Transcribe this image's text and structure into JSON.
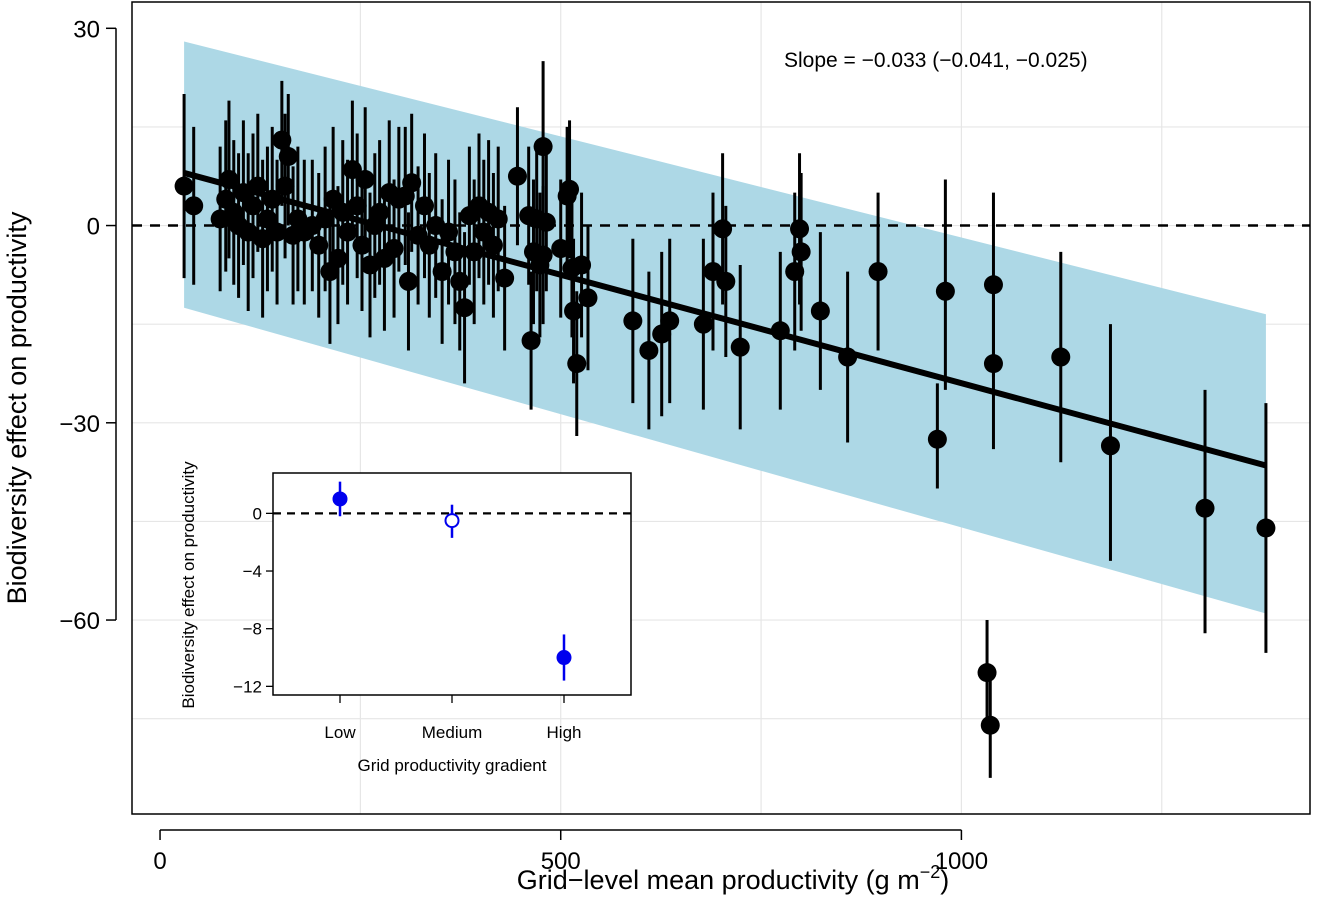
{
  "chart_data": {
    "type": "scatter",
    "xlabel": "Grid−level mean productivity (g m",
    "xlabel_sup": "−2",
    "xlabel_end": ")",
    "ylabel": "Biodiversity effect on productivity",
    "xlim": [
      -35,
      1435
    ],
    "ylim": [
      -89.5,
      34
    ],
    "xticks": [
      {
        "value": 0,
        "label": "0"
      },
      {
        "value": 500,
        "label": "500"
      },
      {
        "value": 1000,
        "label": "1000"
      }
    ],
    "yticks": [
      {
        "value": 30,
        "label": "30"
      },
      {
        "value": 0,
        "label": "0"
      },
      {
        "value": -30,
        "label": "−30"
      },
      {
        "value": -60,
        "label": "−60"
      }
    ],
    "xgrid": [
      250,
      500,
      750,
      1000,
      1250
    ],
    "ygrid": [
      15,
      0,
      -15,
      -30,
      -45,
      -60,
      -75
    ],
    "reference_line_y": 0,
    "annotation": "Slope = −0.033 (−0.041, −0.025)",
    "regression": {
      "x": [
        30,
        1380
      ],
      "y": [
        8,
        -36.5
      ]
    },
    "ribbon": {
      "x": [
        30,
        1380
      ],
      "upper": [
        28,
        -13.5
      ],
      "lower": [
        -12.5,
        -59
      ],
      "color": "#ADD8E6"
    },
    "point_color": "#000000",
    "points": [
      {
        "x": 30,
        "y": 6,
        "lo": -8,
        "hi": 20
      },
      {
        "x": 42,
        "y": 3,
        "lo": -9,
        "hi": 15
      },
      {
        "x": 75,
        "y": 1,
        "lo": -10,
        "hi": 12
      },
      {
        "x": 82,
        "y": 4,
        "lo": -7,
        "hi": 16
      },
      {
        "x": 86,
        "y": 7,
        "lo": -5,
        "hi": 19
      },
      {
        "x": 92,
        "y": 2,
        "lo": -9,
        "hi": 13
      },
      {
        "x": 98,
        "y": 0,
        "lo": -11,
        "hi": 11
      },
      {
        "x": 104,
        "y": 5,
        "lo": -6,
        "hi": 16
      },
      {
        "x": 110,
        "y": -1,
        "lo": -13,
        "hi": 11
      },
      {
        "x": 116,
        "y": 3,
        "lo": -8,
        "hi": 14
      },
      {
        "x": 122,
        "y": 6,
        "lo": -4,
        "hi": 17
      },
      {
        "x": 128,
        "y": -2,
        "lo": -14,
        "hi": 10
      },
      {
        "x": 134,
        "y": 1,
        "lo": -10,
        "hi": 12
      },
      {
        "x": 140,
        "y": 4,
        "lo": -7,
        "hi": 15
      },
      {
        "x": 146,
        "y": -1,
        "lo": -12,
        "hi": 10
      },
      {
        "x": 152,
        "y": 13,
        "lo": 3,
        "hi": 22
      },
      {
        "x": 156,
        "y": 6,
        "lo": -5,
        "hi": 17
      },
      {
        "x": 160,
        "y": 10.5,
        "lo": 0,
        "hi": 20
      },
      {
        "x": 166,
        "y": -1.5,
        "lo": -12,
        "hi": 9
      },
      {
        "x": 172,
        "y": 1,
        "lo": -10,
        "hi": 12
      },
      {
        "x": 180,
        "y": -1,
        "lo": -12,
        "hi": 10
      },
      {
        "x": 190,
        "y": 0,
        "lo": -10,
        "hi": 10
      },
      {
        "x": 198,
        "y": -3,
        "lo": -14,
        "hi": 8
      },
      {
        "x": 206,
        "y": 1,
        "lo": -10,
        "hi": 12
      },
      {
        "x": 212,
        "y": -7,
        "lo": -18,
        "hi": 4
      },
      {
        "x": 216,
        "y": 4,
        "lo": -6,
        "hi": 15
      },
      {
        "x": 222,
        "y": -5,
        "lo": -15,
        "hi": 6
      },
      {
        "x": 228,
        "y": 2,
        "lo": -9,
        "hi": 13
      },
      {
        "x": 234,
        "y": -1,
        "lo": -12,
        "hi": 10
      },
      {
        "x": 240,
        "y": 8.5,
        "lo": -2,
        "hi": 19
      },
      {
        "x": 246,
        "y": 3,
        "lo": -8,
        "hi": 14
      },
      {
        "x": 252,
        "y": -3,
        "lo": -13,
        "hi": 7
      },
      {
        "x": 256,
        "y": 7,
        "lo": -4,
        "hi": 18
      },
      {
        "x": 262,
        "y": -6,
        "lo": -17,
        "hi": 5
      },
      {
        "x": 268,
        "y": 0,
        "lo": -11,
        "hi": 11
      },
      {
        "x": 274,
        "y": 2,
        "lo": -9,
        "hi": 13
      },
      {
        "x": 280,
        "y": -5,
        "lo": -16,
        "hi": 6
      },
      {
        "x": 286,
        "y": 5,
        "lo": -6,
        "hi": 16
      },
      {
        "x": 292,
        "y": -3.5,
        "lo": -14,
        "hi": 7
      },
      {
        "x": 298,
        "y": 4,
        "lo": -7,
        "hi": 15
      },
      {
        "x": 306,
        "y": 4.5,
        "lo": -6,
        "hi": 15
      },
      {
        "x": 314,
        "y": 6.5,
        "lo": -4,
        "hi": 17
      },
      {
        "x": 310,
        "y": -8.5,
        "lo": -19,
        "hi": 2
      },
      {
        "x": 322,
        "y": -1.5,
        "lo": -12,
        "hi": 9
      },
      {
        "x": 330,
        "y": 3,
        "lo": -8,
        "hi": 14
      },
      {
        "x": 336,
        "y": -3,
        "lo": -14,
        "hi": 8
      },
      {
        "x": 344,
        "y": 0,
        "lo": -11,
        "hi": 11
      },
      {
        "x": 352,
        "y": -7,
        "lo": -18,
        "hi": 4
      },
      {
        "x": 360,
        "y": -1,
        "lo": -12,
        "hi": 10
      },
      {
        "x": 368,
        "y": -4,
        "lo": -15,
        "hi": 7
      },
      {
        "x": 374,
        "y": -8.5,
        "lo": -19,
        "hi": 2
      },
      {
        "x": 380,
        "y": -12.5,
        "lo": -24,
        "hi": -1
      },
      {
        "x": 386,
        "y": 1.5,
        "lo": -9,
        "hi": 12
      },
      {
        "x": 392,
        "y": -4,
        "lo": -15,
        "hi": 7
      },
      {
        "x": 398,
        "y": 3,
        "lo": -8,
        "hi": 14
      },
      {
        "x": 404,
        "y": -1,
        "lo": -12,
        "hi": 10
      },
      {
        "x": 410,
        "y": 2,
        "lo": -9,
        "hi": 13
      },
      {
        "x": 416,
        "y": -3,
        "lo": -14,
        "hi": 8
      },
      {
        "x": 422,
        "y": 1,
        "lo": -10,
        "hi": 12
      },
      {
        "x": 430,
        "y": -8,
        "lo": -19,
        "hi": 3
      },
      {
        "x": 446,
        "y": 7.5,
        "lo": -3,
        "hi": 18
      },
      {
        "x": 460,
        "y": 1.5,
        "lo": -9,
        "hi": 12
      },
      {
        "x": 463,
        "y": -17.5,
        "lo": -28,
        "hi": -7
      },
      {
        "x": 466,
        "y": -4,
        "lo": -15,
        "hi": 7
      },
      {
        "x": 470,
        "y": 1,
        "lo": -10,
        "hi": 12
      },
      {
        "x": 474,
        "y": -6,
        "lo": -17,
        "hi": 5
      },
      {
        "x": 478,
        "y": 12,
        "lo": 1,
        "hi": 25
      },
      {
        "x": 482,
        "y": 0.5,
        "lo": -10,
        "hi": 11
      },
      {
        "x": 478,
        "y": -4.5,
        "lo": -15,
        "hi": 6
      },
      {
        "x": 500,
        "y": -3.5,
        "lo": -14,
        "hi": 7
      },
      {
        "x": 508,
        "y": 4.5,
        "lo": -6,
        "hi": 15
      },
      {
        "x": 511,
        "y": 5.5,
        "lo": -5,
        "hi": 16
      },
      {
        "x": 514,
        "y": -6.5,
        "lo": -17,
        "hi": 4
      },
      {
        "x": 516,
        "y": -13,
        "lo": -24,
        "hi": -2
      },
      {
        "x": 520,
        "y": -21,
        "lo": -32,
        "hi": -10
      },
      {
        "x": 526,
        "y": -6,
        "lo": -17,
        "hi": 5
      },
      {
        "x": 534,
        "y": -11,
        "lo": -22,
        "hi": 0
      },
      {
        "x": 590,
        "y": -14.5,
        "lo": -27,
        "hi": -2
      },
      {
        "x": 610,
        "y": -19,
        "lo": -31,
        "hi": -7
      },
      {
        "x": 626,
        "y": -16.5,
        "lo": -29,
        "hi": -4
      },
      {
        "x": 636,
        "y": -14.5,
        "lo": -27,
        "hi": -2
      },
      {
        "x": 678,
        "y": -15,
        "lo": -28,
        "hi": -2
      },
      {
        "x": 690,
        "y": -7,
        "lo": -19,
        "hi": 5
      },
      {
        "x": 702,
        "y": -0.5,
        "lo": -12,
        "hi": 11
      },
      {
        "x": 706,
        "y": -8.5,
        "lo": -20,
        "hi": 3
      },
      {
        "x": 724,
        "y": -18.5,
        "lo": -31,
        "hi": -6
      },
      {
        "x": 774,
        "y": -16,
        "lo": -28,
        "hi": -4
      },
      {
        "x": 792,
        "y": -7,
        "lo": -19,
        "hi": 5
      },
      {
        "x": 798,
        "y": -0.5,
        "lo": -12,
        "hi": 11
      },
      {
        "x": 800,
        "y": -4,
        "lo": -16,
        "hi": 8
      },
      {
        "x": 824,
        "y": -13,
        "lo": -25,
        "hi": -1
      },
      {
        "x": 858,
        "y": -20,
        "lo": -33,
        "hi": -7
      },
      {
        "x": 896,
        "y": -7,
        "lo": -19,
        "hi": 5
      },
      {
        "x": 970,
        "y": -32.5,
        "lo": -40,
        "hi": -24
      },
      {
        "x": 980,
        "y": -10,
        "lo": -25,
        "hi": 7
      },
      {
        "x": 1032,
        "y": -68,
        "lo": -76,
        "hi": -60
      },
      {
        "x": 1036,
        "y": -76,
        "lo": -84,
        "hi": -69
      },
      {
        "x": 1040,
        "y": -9,
        "lo": -23,
        "hi": 5
      },
      {
        "x": 1040,
        "y": -21,
        "lo": -34,
        "hi": -8
      },
      {
        "x": 1124,
        "y": -20,
        "lo": -36,
        "hi": -4
      },
      {
        "x": 1186,
        "y": -33.5,
        "lo": -51,
        "hi": -15
      },
      {
        "x": 1304,
        "y": -43,
        "lo": -62,
        "hi": -25
      },
      {
        "x": 1380,
        "y": -46,
        "lo": -65,
        "hi": -27
      }
    ],
    "inset": {
      "type": "scatter",
      "categories": [
        "Low",
        "Medium",
        "High"
      ],
      "values": [
        1,
        -0.5,
        -10
      ],
      "ci_low": [
        -0.2,
        -1.7,
        -11.6
      ],
      "ci_high": [
        2.2,
        0.6,
        -8.4
      ],
      "filled": [
        true,
        false,
        true
      ],
      "color": "#0000EE",
      "ylim": [
        -12.6,
        2.8
      ],
      "yticks": [
        {
          "value": 0,
          "label": "0"
        },
        {
          "value": -4,
          "label": "−4"
        },
        {
          "value": -8,
          "label": "−8"
        },
        {
          "value": -12,
          "label": "−12"
        }
      ],
      "xlabel": "Grid productivity gradient",
      "ylabel": "Biodiversity effect on productivity",
      "reference_line_y": 0
    }
  }
}
